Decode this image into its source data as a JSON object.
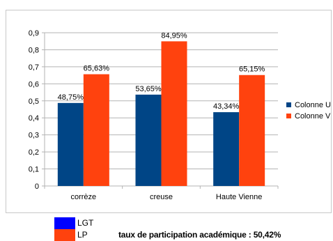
{
  "chart_data": {
    "type": "bar",
    "categories": [
      "corrèze",
      "creuse",
      "Haute Vienne"
    ],
    "series": [
      {
        "name": "Colonne U",
        "values": [
          0.4875,
          0.5365,
          0.4334
        ],
        "labels": [
          "48,75%",
          "53,65%",
          "43,34%"
        ],
        "color": "#004586"
      },
      {
        "name": "Colonne V",
        "values": [
          0.6563,
          0.8495,
          0.6515
        ],
        "labels": [
          "65,63%",
          "84,95%",
          "65,15%"
        ],
        "color": "#ff420e"
      }
    ],
    "ylim": [
      0,
      0.9
    ],
    "yticks": [
      0,
      0.1,
      0.2,
      0.3,
      0.4,
      0.5,
      0.6,
      0.7,
      0.8,
      0.9
    ],
    "ytick_labels": [
      "0",
      "0,1",
      "0,2",
      "0,3",
      "0,4",
      "0,5",
      "0,6",
      "0,7",
      "0,8",
      "0,9"
    ],
    "grid": true,
    "legend": "right"
  },
  "key": {
    "items": [
      {
        "label": "LGT",
        "color": "#0000ff"
      },
      {
        "label": "LP",
        "color": "#ff420e"
      }
    ]
  },
  "footer": {
    "participation": "taux de participation académique : 50,42%"
  }
}
